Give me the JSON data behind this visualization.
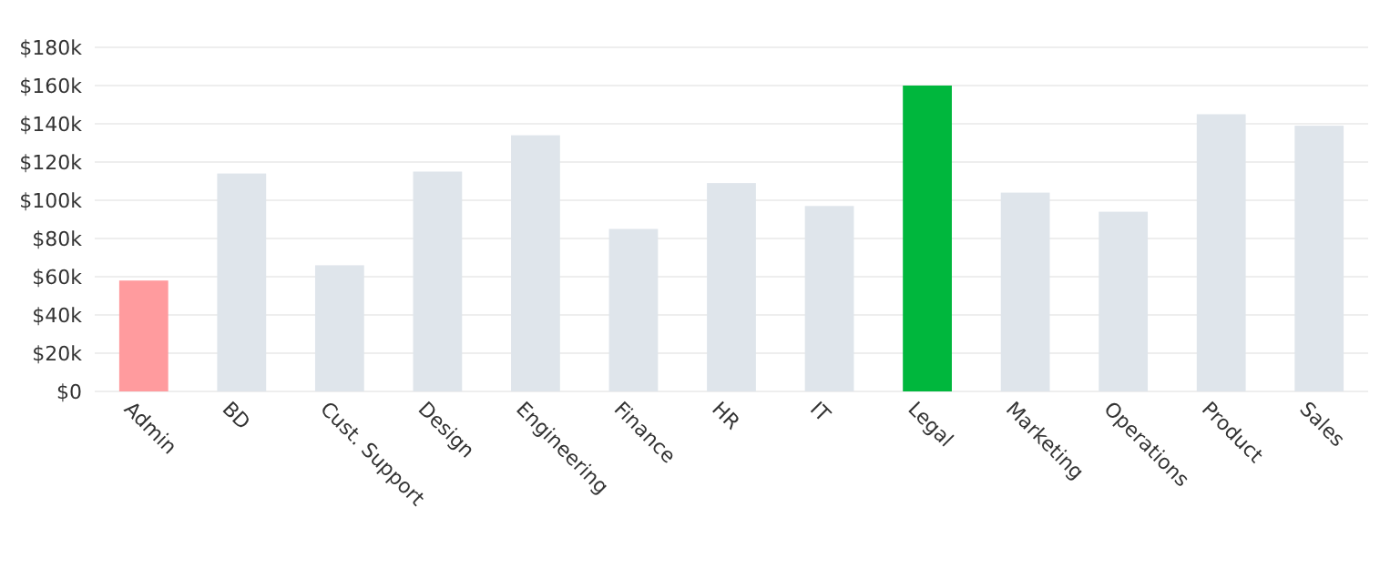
{
  "chart_data": {
    "type": "bar",
    "categories": [
      "Admin",
      "BD",
      "Cust. Support",
      "Design",
      "Engineering",
      "Finance",
      "HR",
      "IT",
      "Legal",
      "Marketing",
      "Operations",
      "Product",
      "Sales"
    ],
    "values": [
      58000,
      114000,
      66000,
      115000,
      134000,
      85000,
      109000,
      97000,
      160000,
      104000,
      94000,
      145000,
      139000
    ],
    "colors": [
      "#ff9b9e",
      "#dfe5eb",
      "#dfe5eb",
      "#dfe5eb",
      "#dfe5eb",
      "#dfe5eb",
      "#dfe5eb",
      "#dfe5eb",
      "#00b73d",
      "#dfe5eb",
      "#dfe5eb",
      "#dfe5eb",
      "#dfe5eb"
    ],
    "ylim": [
      0,
      180000
    ],
    "yticks": [
      {
        "value": 0,
        "label": "$0"
      },
      {
        "value": 20000,
        "label": "$20k"
      },
      {
        "value": 40000,
        "label": "$40k"
      },
      {
        "value": 60000,
        "label": "$60k"
      },
      {
        "value": 80000,
        "label": "$80k"
      },
      {
        "value": 100000,
        "label": "$100k"
      },
      {
        "value": 120000,
        "label": "$120k"
      },
      {
        "value": 140000,
        "label": "$140k"
      },
      {
        "value": 160000,
        "label": "$160k"
      },
      {
        "value": 180000,
        "label": "$180k"
      }
    ],
    "grid": true
  }
}
